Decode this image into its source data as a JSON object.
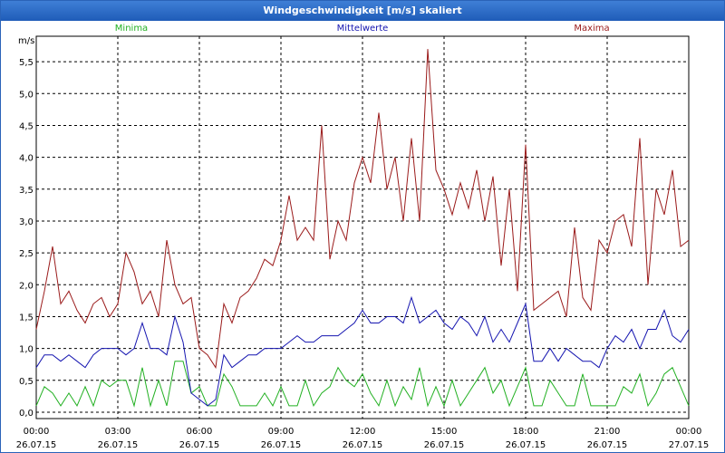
{
  "window": {
    "title": "Windgeschwindigkeit [m/s] skaliert"
  },
  "colors": {
    "minima": "#22b022",
    "mittel": "#1515b0",
    "maxima": "#9a1a1a",
    "grid": "#000000"
  },
  "chart_data": {
    "type": "line",
    "title": "Windgeschwindigkeit [m/s] skaliert",
    "ylabel": "m/s",
    "xlabel": "",
    "ylim": [
      -0.1,
      5.9
    ],
    "yticks": [
      "0,0",
      "0,5",
      "1,0",
      "1,5",
      "2,0",
      "2,5",
      "3,0",
      "3,5",
      "4,0",
      "4,5",
      "5,0",
      "5,5"
    ],
    "ytick_values": [
      0,
      0.5,
      1.0,
      1.5,
      2.0,
      2.5,
      3.0,
      3.5,
      4.0,
      4.5,
      5.0,
      5.5
    ],
    "xticks": [
      {
        "time": "00:00",
        "date": "26.07.15"
      },
      {
        "time": "03:00",
        "date": "26.07.15"
      },
      {
        "time": "06:00",
        "date": "26.07.15"
      },
      {
        "time": "09:00",
        "date": "26.07.15"
      },
      {
        "time": "12:00",
        "date": "26.07.15"
      },
      {
        "time": "15:00",
        "date": "26.07.15"
      },
      {
        "time": "18:00",
        "date": "26.07.15"
      },
      {
        "time": "21:00",
        "date": "26.07.15"
      },
      {
        "time": "00:00",
        "date": "27.07.15"
      }
    ],
    "x_range_hours": [
      0,
      24
    ],
    "grid": true,
    "series": [
      {
        "name": "Minima",
        "color": "#22b022",
        "x": [
          0,
          0.3,
          0.6,
          0.9,
          1.2,
          1.5,
          1.8,
          2.1,
          2.4,
          2.7,
          3.0,
          3.3,
          3.6,
          3.9,
          4.2,
          4.5,
          4.8,
          5.1,
          5.4,
          5.7,
          6.0,
          6.3,
          6.6,
          6.9,
          7.2,
          7.5,
          7.8,
          8.1,
          8.4,
          8.7,
          9.0,
          9.3,
          9.6,
          9.9,
          10.2,
          10.5,
          10.8,
          11.1,
          11.4,
          11.7,
          12.0,
          12.3,
          12.6,
          12.9,
          13.2,
          13.5,
          13.8,
          14.1,
          14.4,
          14.7,
          15.0,
          15.3,
          15.6,
          15.9,
          16.2,
          16.5,
          16.8,
          17.1,
          17.4,
          17.7,
          18.0,
          18.3,
          18.6,
          18.9,
          19.2,
          19.5,
          19.8,
          20.1,
          20.4,
          20.7,
          21.0,
          21.3,
          21.6,
          21.9,
          22.2,
          22.5,
          22.8,
          23.1,
          23.4,
          23.7,
          24.0
        ],
        "values": [
          0.1,
          0.4,
          0.3,
          0.1,
          0.3,
          0.1,
          0.4,
          0.1,
          0.5,
          0.4,
          0.5,
          0.5,
          0.1,
          0.7,
          0.1,
          0.5,
          0.1,
          0.8,
          0.8,
          0.3,
          0.4,
          0.1,
          0.1,
          0.6,
          0.4,
          0.1,
          0.1,
          0.1,
          0.3,
          0.1,
          0.4,
          0.1,
          0.1,
          0.5,
          0.1,
          0.3,
          0.4,
          0.7,
          0.5,
          0.4,
          0.6,
          0.3,
          0.1,
          0.5,
          0.1,
          0.4,
          0.2,
          0.7,
          0.1,
          0.4,
          0.1,
          0.5,
          0.1,
          0.3,
          0.5,
          0.7,
          0.3,
          0.5,
          0.1,
          0.4,
          0.7,
          0.1,
          0.1,
          0.5,
          0.3,
          0.1,
          0.1,
          0.6,
          0.1,
          0.1,
          0.1,
          0.1,
          0.4,
          0.3,
          0.6,
          0.1,
          0.3,
          0.6,
          0.7,
          0.4,
          0.1
        ]
      },
      {
        "name": "Mittelwerte",
        "color": "#1515b0",
        "x": [
          0,
          0.3,
          0.6,
          0.9,
          1.2,
          1.5,
          1.8,
          2.1,
          2.4,
          2.7,
          3.0,
          3.3,
          3.6,
          3.9,
          4.2,
          4.5,
          4.8,
          5.1,
          5.4,
          5.7,
          6.0,
          6.3,
          6.6,
          6.9,
          7.2,
          7.5,
          7.8,
          8.1,
          8.4,
          8.7,
          9.0,
          9.3,
          9.6,
          9.9,
          10.2,
          10.5,
          10.8,
          11.1,
          11.4,
          11.7,
          12.0,
          12.3,
          12.6,
          12.9,
          13.2,
          13.5,
          13.8,
          14.1,
          14.4,
          14.7,
          15.0,
          15.3,
          15.6,
          15.9,
          16.2,
          16.5,
          16.8,
          17.1,
          17.4,
          17.7,
          18.0,
          18.3,
          18.6,
          18.9,
          19.2,
          19.5,
          19.8,
          20.1,
          20.4,
          20.7,
          21.0,
          21.3,
          21.6,
          21.9,
          22.2,
          22.5,
          22.8,
          23.1,
          23.4,
          23.7,
          24.0
        ],
        "values": [
          0.7,
          0.9,
          0.9,
          0.8,
          0.9,
          0.8,
          0.7,
          0.9,
          1.0,
          1.0,
          1.0,
          0.9,
          1.0,
          1.4,
          1.0,
          1.0,
          0.9,
          1.5,
          1.1,
          0.3,
          0.2,
          0.1,
          0.2,
          0.9,
          0.7,
          0.8,
          0.9,
          0.9,
          1.0,
          1.0,
          1.0,
          1.1,
          1.2,
          1.1,
          1.1,
          1.2,
          1.2,
          1.2,
          1.3,
          1.4,
          1.6,
          1.4,
          1.4,
          1.5,
          1.5,
          1.4,
          1.8,
          1.4,
          1.5,
          1.6,
          1.4,
          1.3,
          1.5,
          1.4,
          1.2,
          1.5,
          1.1,
          1.3,
          1.1,
          1.4,
          1.7,
          0.8,
          0.8,
          1.0,
          0.8,
          1.0,
          0.9,
          0.8,
          0.8,
          0.7,
          1.0,
          1.2,
          1.1,
          1.3,
          1.0,
          1.3,
          1.3,
          1.6,
          1.2,
          1.1,
          1.3
        ]
      },
      {
        "name": "Maxima",
        "color": "#9a1a1a",
        "x": [
          0,
          0.3,
          0.6,
          0.9,
          1.2,
          1.5,
          1.8,
          2.1,
          2.4,
          2.7,
          3.0,
          3.3,
          3.6,
          3.9,
          4.2,
          4.5,
          4.8,
          5.1,
          5.4,
          5.7,
          6.0,
          6.3,
          6.6,
          6.9,
          7.2,
          7.5,
          7.8,
          8.1,
          8.4,
          8.7,
          9.0,
          9.3,
          9.6,
          9.9,
          10.2,
          10.5,
          10.8,
          11.1,
          11.4,
          11.7,
          12.0,
          12.3,
          12.6,
          12.9,
          13.2,
          13.5,
          13.8,
          14.1,
          14.4,
          14.7,
          15.0,
          15.3,
          15.6,
          15.9,
          16.2,
          16.5,
          16.8,
          17.1,
          17.4,
          17.7,
          18.0,
          18.3,
          18.6,
          18.9,
          19.2,
          19.5,
          19.8,
          20.1,
          20.4,
          20.7,
          21.0,
          21.3,
          21.6,
          21.9,
          22.2,
          22.5,
          22.8,
          23.1,
          23.4,
          23.7,
          24.0
        ],
        "values": [
          1.3,
          1.9,
          2.6,
          1.7,
          1.9,
          1.6,
          1.4,
          1.7,
          1.8,
          1.5,
          1.7,
          2.5,
          2.2,
          1.7,
          1.9,
          1.5,
          2.7,
          2.0,
          1.7,
          1.8,
          1.0,
          0.9,
          0.7,
          1.7,
          1.4,
          1.8,
          1.9,
          2.1,
          2.4,
          2.3,
          2.7,
          3.4,
          2.7,
          2.9,
          2.7,
          4.5,
          2.4,
          3.0,
          2.7,
          3.6,
          4.0,
          3.6,
          4.7,
          3.5,
          4.0,
          3.0,
          4.3,
          3.0,
          5.7,
          3.8,
          3.5,
          3.1,
          3.6,
          3.2,
          3.8,
          3.0,
          3.7,
          2.3,
          3.5,
          1.9,
          4.2,
          1.6,
          1.7,
          1.8,
          1.9,
          1.5,
          2.9,
          1.8,
          1.6,
          2.7,
          2.5,
          3.0,
          3.1,
          2.6,
          4.3,
          2.0,
          3.5,
          3.1,
          3.8,
          2.6,
          2.7
        ]
      }
    ],
    "legend": [
      "Minima",
      "Mittelwerte",
      "Maxima"
    ],
    "legend_placement": "top"
  }
}
